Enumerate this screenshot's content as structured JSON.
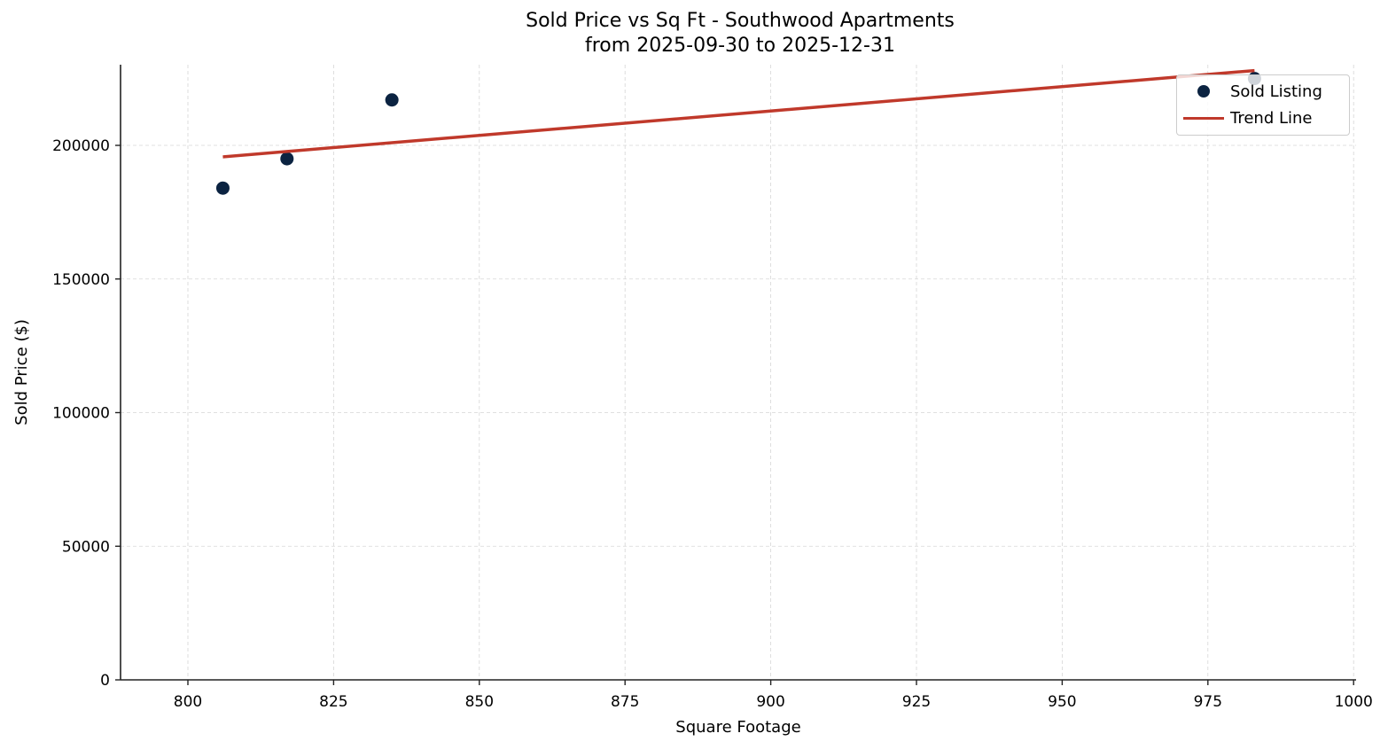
{
  "chart_data": {
    "type": "scatter",
    "title": "Sold Price vs Sq Ft - Southwood Apartments",
    "subtitle": "from 2025-09-30 to 2025-12-31",
    "xlabel": "Square Footage",
    "ylabel": "Sold Price ($)",
    "xlim": [
      788,
      1001
    ],
    "ylim": [
      0,
      230000
    ],
    "xticks": [
      800,
      825,
      850,
      875,
      900,
      925,
      950,
      975,
      1000
    ],
    "yticks": [
      0,
      50000,
      100000,
      150000,
      200000
    ],
    "grid": true,
    "legend_position": "upper right",
    "series": [
      {
        "name": "Sold Listing",
        "kind": "scatter",
        "color": "#0b2341",
        "points": [
          {
            "x": 806,
            "y": 184000
          },
          {
            "x": 817,
            "y": 195000
          },
          {
            "x": 835,
            "y": 217000
          },
          {
            "x": 983,
            "y": 225000
          }
        ]
      },
      {
        "name": "Trend Line",
        "kind": "line",
        "color": "#c0392b",
        "points": [
          {
            "x": 806,
            "y": 195700
          },
          {
            "x": 983,
            "y": 228000
          }
        ]
      }
    ]
  },
  "legend": {
    "items": [
      {
        "label": "Sold Listing",
        "color": "#0b2341"
      },
      {
        "label": "Trend Line",
        "color": "#c0392b"
      }
    ]
  }
}
